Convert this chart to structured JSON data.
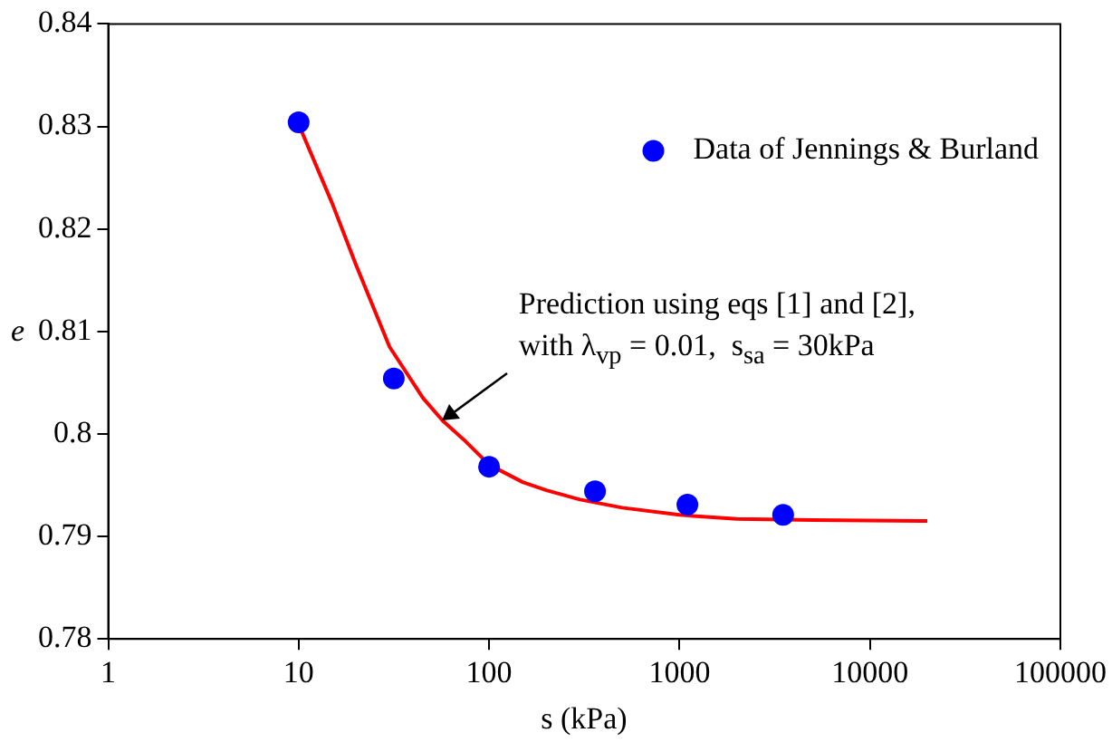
{
  "chart_data": {
    "type": "scatter",
    "xlabel": "s (kPa)",
    "ylabel": "e",
    "log": "x",
    "xlim": [
      1,
      100000
    ],
    "xticks": [
      1,
      10,
      100,
      1000,
      10000,
      100000
    ],
    "ylim": [
      0.78,
      0.84
    ],
    "yticks": [
      0.78,
      0.79,
      0.8,
      0.81,
      0.82,
      0.83,
      0.84
    ],
    "grid": false,
    "legend": "top right",
    "marker": "circle",
    "series": [
      {
        "name": "Data of Jennings & Burland",
        "color": "#0000ff",
        "x": [
          10,
          31.6,
          100,
          360,
          1100,
          3500
        ],
        "values": [
          0.8304,
          0.8054,
          0.7968,
          0.7944,
          0.7931,
          0.7921
        ]
      },
      {
        "type": "line",
        "color": "#ff0000",
        "marker": "none",
        "x": [
          10,
          15,
          20,
          30,
          45,
          57,
          75,
          100,
          150,
          200,
          300,
          500,
          1000,
          2000,
          5000,
          20000
        ],
        "values": [
          0.8302,
          0.8225,
          0.8165,
          0.8085,
          0.8035,
          0.8013,
          0.7993,
          0.797,
          0.7953,
          0.7945,
          0.7936,
          0.7928,
          0.7921,
          0.7917,
          0.7916,
          0.7915
        ]
      }
    ],
    "annotations": [
      {
        "text": "Prediction using eqs [1] and [2],\nwith λ$_{vp}$ = 0.01,  s$_{sa}$ = 30kPa",
        "x": 57,
        "y": 0.8013
      }
    ]
  }
}
